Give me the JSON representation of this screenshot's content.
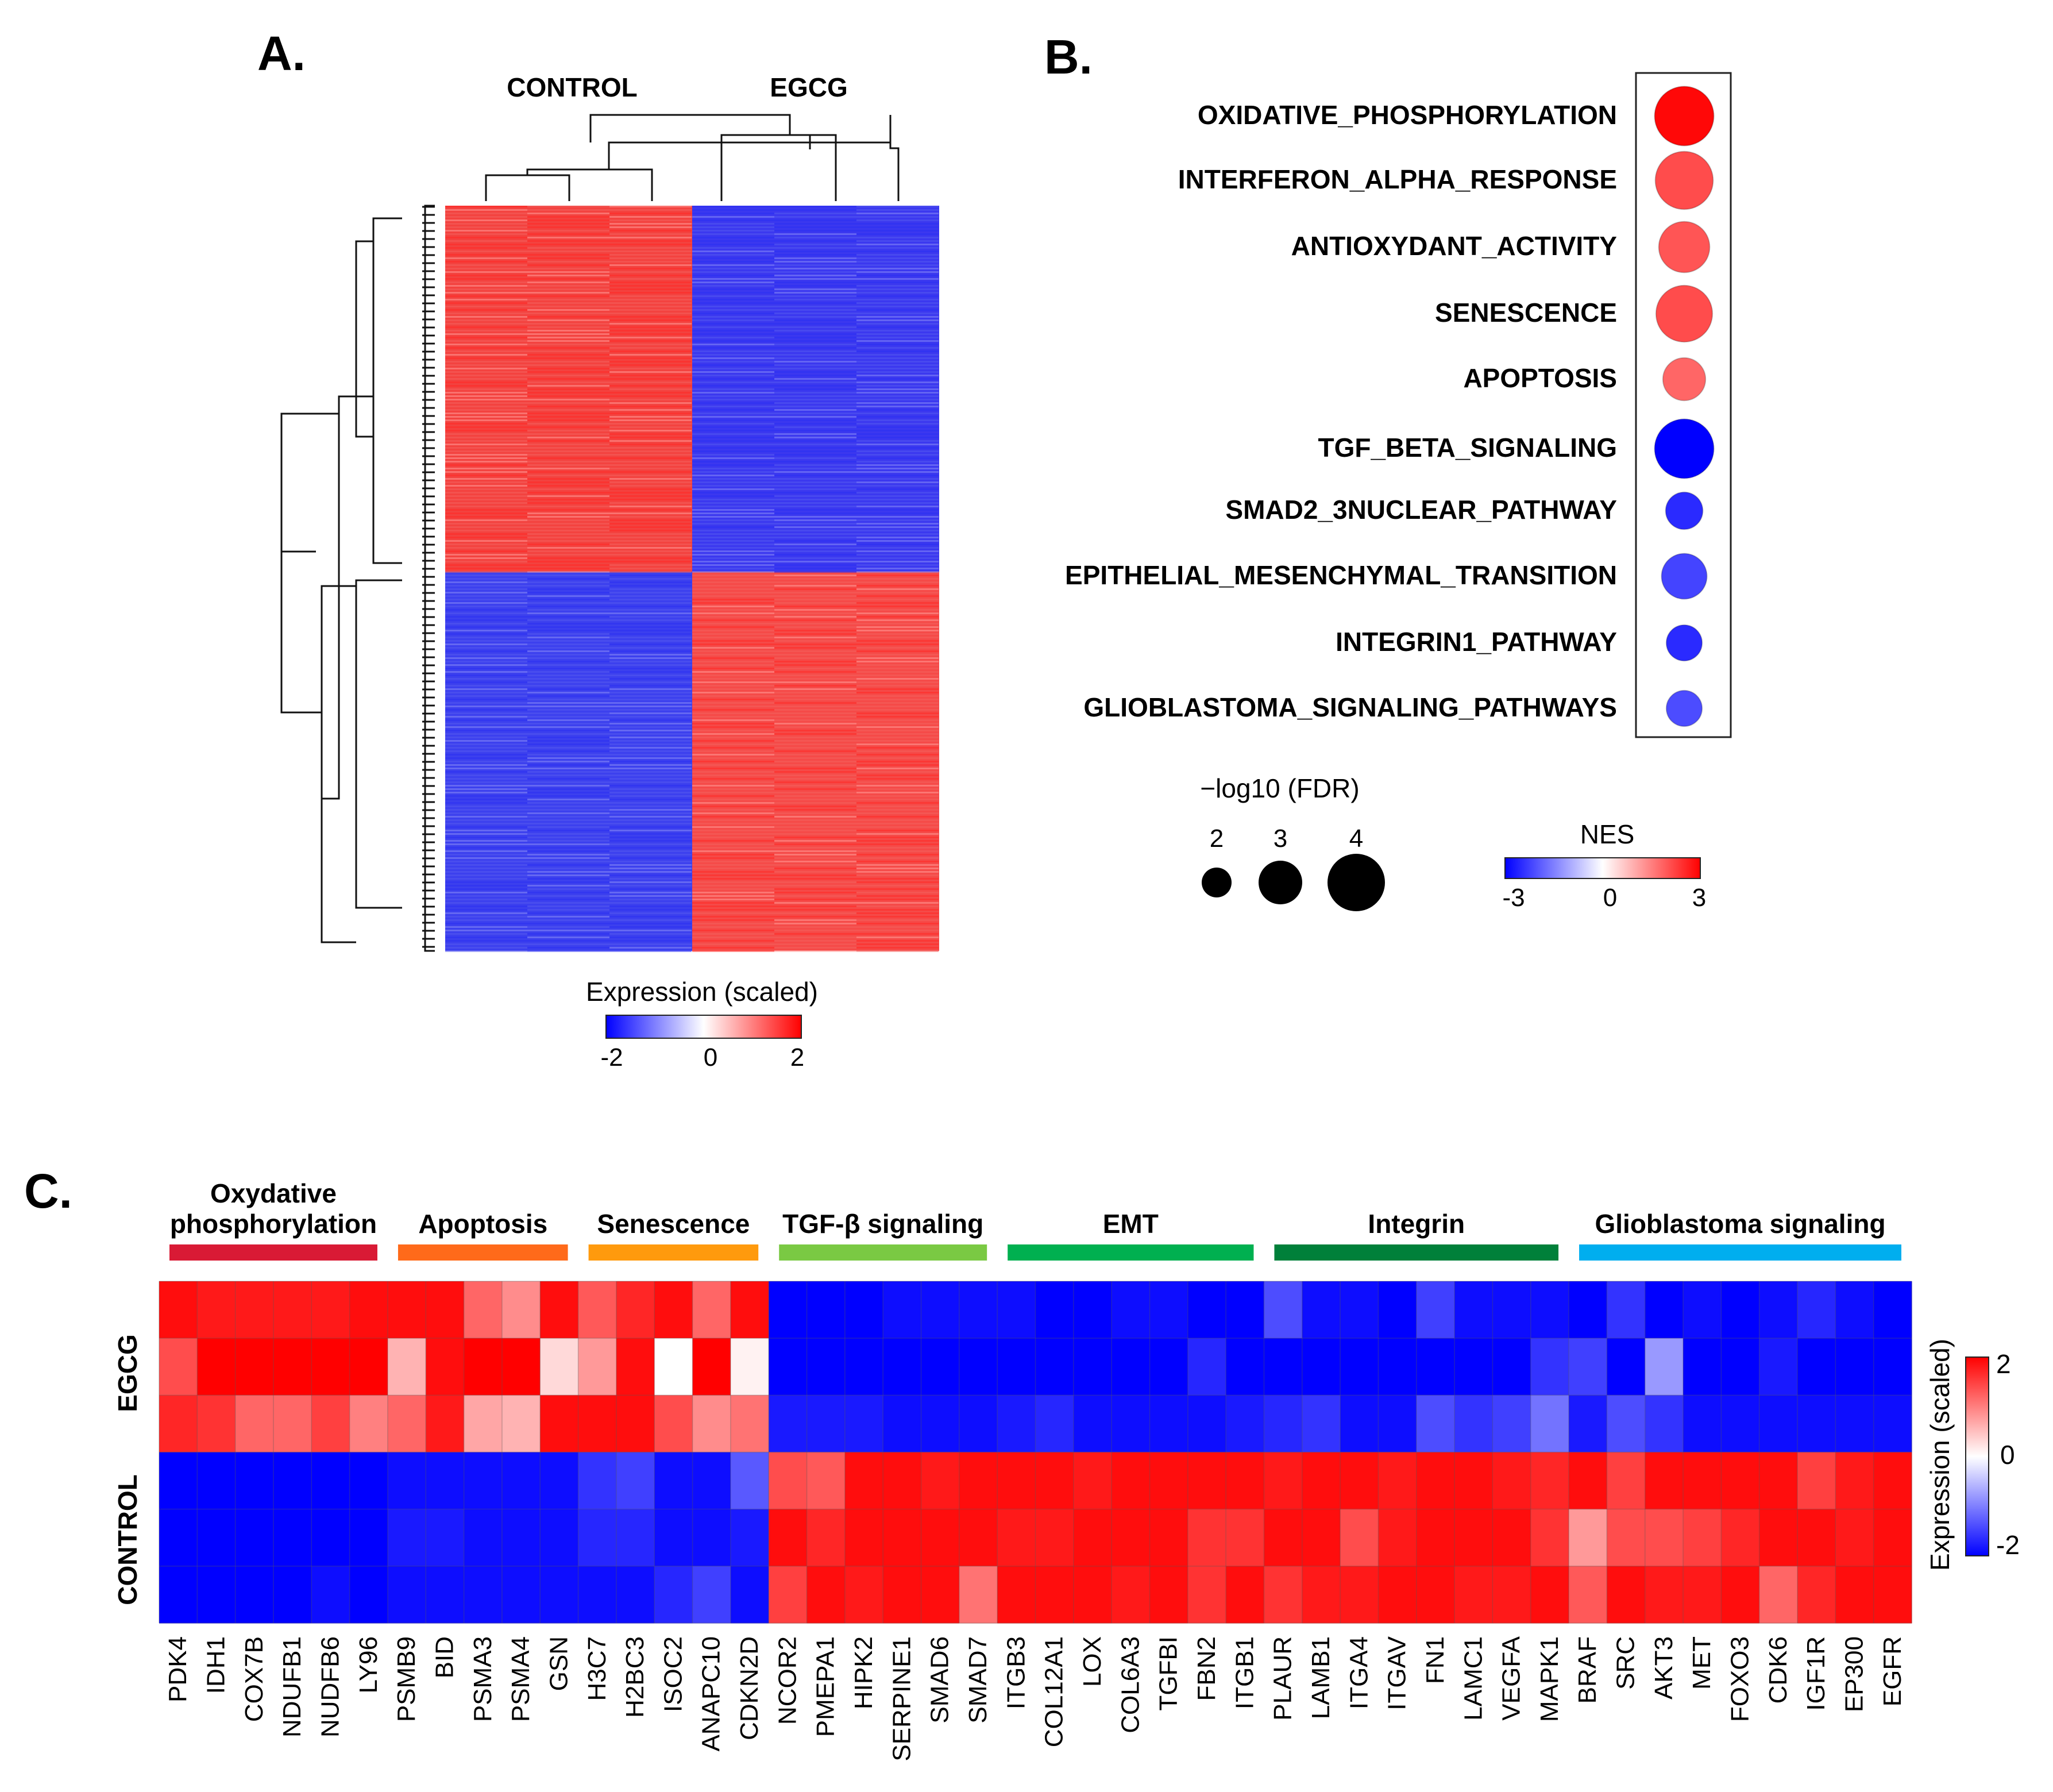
{
  "panels": {
    "a": {
      "label": "A."
    },
    "b": {
      "label": "B."
    },
    "c": {
      "label": "C."
    }
  },
  "colors": {
    "high": "#ff0000",
    "mid": "#ffffff",
    "low": "#0000ff"
  },
  "chart_data": [
    {
      "type": "heatmap",
      "id": "A",
      "column_groups": [
        "CONTROL",
        "EGCG"
      ],
      "columns_per_group": 3,
      "row_blocks": [
        {
          "control": "high",
          "egcg": "low"
        },
        {
          "control": "low",
          "egcg": "high"
        }
      ],
      "dendrograms": {
        "rows": true,
        "columns": true
      },
      "colorbar": {
        "title": "Expression (scaled)",
        "min": -2,
        "max": 2,
        "ticks": [
          "-2",
          "0",
          "2"
        ]
      }
    },
    {
      "type": "scatter",
      "id": "B",
      "pathways": [
        {
          "name": "OXIDATIVE_PHOSPHORYLATION",
          "nes": 2.9,
          "neglog10_fdr": 3.8
        },
        {
          "name": "INTERFERON_ALPHA_RESPONSE",
          "nes": 2.1,
          "neglog10_fdr": 3.7
        },
        {
          "name": "ANTIOXYDANT_ACTIVITY",
          "nes": 2.0,
          "neglog10_fdr": 3.2
        },
        {
          "name": "SENESCENCE",
          "nes": 2.1,
          "neglog10_fdr": 3.6
        },
        {
          "name": "APOPTOSIS",
          "nes": 1.8,
          "neglog10_fdr": 2.6
        },
        {
          "name": "TGF_BETA_SIGNALING",
          "nes": -3.0,
          "neglog10_fdr": 3.8
        },
        {
          "name": "SMAD2_3NUCLEAR_PATHWAY",
          "nes": -2.5,
          "neglog10_fdr": 2.2
        },
        {
          "name": "EPITHELIAL_MESENCHYMAL_TRANSITION",
          "nes": -2.2,
          "neglog10_fdr": 2.8
        },
        {
          "name": "INTEGRIN1_PATHWAY",
          "nes": -2.5,
          "neglog10_fdr": 2.1
        },
        {
          "name": "GLIOBLASTOMA_SIGNALING_PATHWAYS",
          "nes": -2.1,
          "neglog10_fdr": 2.1
        }
      ],
      "size_legend": {
        "title": "−log10 (FDR)",
        "values": [
          2,
          3,
          4
        ]
      },
      "color_legend": {
        "title": "NES",
        "min": -3,
        "max": 3,
        "ticks": [
          "-3",
          "0",
          "3"
        ]
      }
    },
    {
      "type": "heatmap",
      "id": "C",
      "rows": [
        "EGCG",
        "CONTROL"
      ],
      "samples_per_condition": 3,
      "groups": [
        {
          "label": "Oxydative phosphorylation",
          "color": "#d91a35",
          "count": 6
        },
        {
          "label": "Apoptosis",
          "color": "#ff6a1a",
          "count": 5
        },
        {
          "label": "Senescence",
          "color": "#ff9a0d",
          "count": 5
        },
        {
          "label": "TGF-β signaling",
          "color": "#7ac943",
          "count": 6
        },
        {
          "label": "EMT",
          "color": "#00b050",
          "count": 7
        },
        {
          "label": "Integrin",
          "color": "#00803a",
          "count": 8
        },
        {
          "label": "Glioblastoma signaling",
          "color": "#00aeef",
          "count": 9
        }
      ],
      "genes": [
        "PDK4",
        "IDH1",
        "COX7B",
        "NDUFB1",
        "NUDFB6",
        "LY96",
        "PSMB9",
        "BID",
        "PSMA3",
        "PSMA4",
        "GSN",
        "H3C7",
        "H2BC3",
        "ISOC2",
        "ANAPC10",
        "CDKN2D",
        "NCOR2",
        "PMEPA1",
        "HIPK2",
        "SERPINE1",
        "SMAD6",
        "SMAD7",
        "ITGB3",
        "COL12A1",
        "LOX",
        "COL6A3",
        "TGFBI",
        "FBN2",
        "ITGB1",
        "PLAUR",
        "LAMB1",
        "ITGA4",
        "ITGAV",
        "FN1",
        "LAMC1",
        "VEGFA",
        "MAPK1",
        "BRAF",
        "SRC",
        "AKT3",
        "MET",
        "FOXO3",
        "CDK6",
        "IGF1R",
        "EP300",
        "EGFR"
      ],
      "values": [
        [
          1.9,
          1.8,
          1.8,
          1.8,
          1.8,
          1.9,
          1.9,
          1.9,
          1.2,
          0.9,
          1.9,
          1.3,
          1.7,
          1.9,
          1.2,
          1.9,
          -2,
          -2,
          -2,
          -1.9,
          -1.9,
          -1.9,
          -1.9,
          -2,
          -2,
          -1.9,
          -1.9,
          -2,
          -2,
          -1.4,
          -1.9,
          -1.9,
          -2,
          -1.5,
          -1.9,
          -1.9,
          -1.9,
          -2,
          -1.6,
          -2,
          -1.9,
          -2,
          -1.9,
          -1.7,
          -1.9,
          -2
        ],
        [
          1.4,
          2.0,
          2.0,
          2.0,
          2.0,
          2.0,
          0.6,
          1.9,
          2.0,
          2.0,
          0.3,
          0.8,
          1.9,
          0.0,
          2.0,
          0.1,
          -2,
          -2,
          -2,
          -2,
          -2,
          -2,
          -2,
          -2,
          -2,
          -2,
          -2,
          -1.7,
          -2,
          -2,
          -2,
          -2,
          -2,
          -2,
          -2,
          -2,
          -1.6,
          -1.5,
          -2,
          -0.8,
          -2,
          -2,
          -1.8,
          -2,
          -2,
          -2
        ],
        [
          1.7,
          1.6,
          1.2,
          1.2,
          1.5,
          1.0,
          1.2,
          1.8,
          0.7,
          0.6,
          1.9,
          1.9,
          1.9,
          1.4,
          0.9,
          1.1,
          -1.8,
          -1.8,
          -1.8,
          -1.9,
          -1.9,
          -1.9,
          -1.8,
          -1.7,
          -1.9,
          -1.9,
          -1.9,
          -1.9,
          -1.8,
          -1.7,
          -1.6,
          -1.9,
          -1.9,
          -1.4,
          -1.6,
          -1.5,
          -1.1,
          -1.8,
          -1.4,
          -1.6,
          -1.9,
          -1.9,
          -1.9,
          -1.9,
          -1.9,
          -1.9
        ],
        [
          -2,
          -2,
          -2,
          -2,
          -2,
          -2,
          -1.9,
          -1.9,
          -1.9,
          -1.9,
          -1.9,
          -1.6,
          -1.5,
          -1.9,
          -1.9,
          -1.3,
          1.4,
          1.3,
          1.9,
          1.9,
          1.8,
          1.9,
          1.9,
          1.9,
          1.8,
          1.9,
          1.9,
          1.9,
          1.9,
          1.8,
          1.9,
          1.9,
          1.8,
          1.9,
          1.9,
          1.8,
          1.7,
          1.9,
          1.5,
          1.9,
          1.9,
          1.9,
          1.9,
          1.5,
          1.8,
          1.9
        ],
        [
          -2,
          -2,
          -2,
          -2,
          -2,
          -2,
          -1.8,
          -1.8,
          -1.9,
          -1.9,
          -1.9,
          -1.7,
          -1.7,
          -1.9,
          -1.9,
          -1.8,
          1.9,
          1.7,
          1.9,
          1.9,
          1.9,
          1.9,
          1.8,
          1.8,
          1.9,
          1.9,
          1.9,
          1.6,
          1.6,
          1.9,
          1.9,
          1.4,
          1.8,
          1.9,
          1.9,
          1.9,
          1.6,
          0.8,
          1.4,
          1.4,
          1.5,
          1.7,
          1.9,
          1.9,
          1.8,
          1.9
        ],
        [
          -2,
          -2,
          -2,
          -2,
          -1.9,
          -2,
          -1.9,
          -1.9,
          -1.9,
          -1.9,
          -1.9,
          -1.9,
          -1.9,
          -1.7,
          -1.5,
          -1.9,
          1.5,
          1.9,
          1.8,
          1.9,
          1.9,
          1.1,
          1.9,
          1.9,
          1.9,
          1.8,
          1.9,
          1.6,
          1.9,
          1.6,
          1.8,
          1.8,
          1.9,
          1.9,
          1.8,
          1.8,
          1.9,
          1.3,
          1.9,
          1.8,
          1.8,
          1.9,
          1.2,
          1.7,
          1.9,
          1.9
        ]
      ],
      "colorbar": {
        "title": "Expression (scaled)",
        "min": -2,
        "max": 2,
        "ticks": [
          "2",
          "0",
          "-2"
        ]
      }
    }
  ]
}
